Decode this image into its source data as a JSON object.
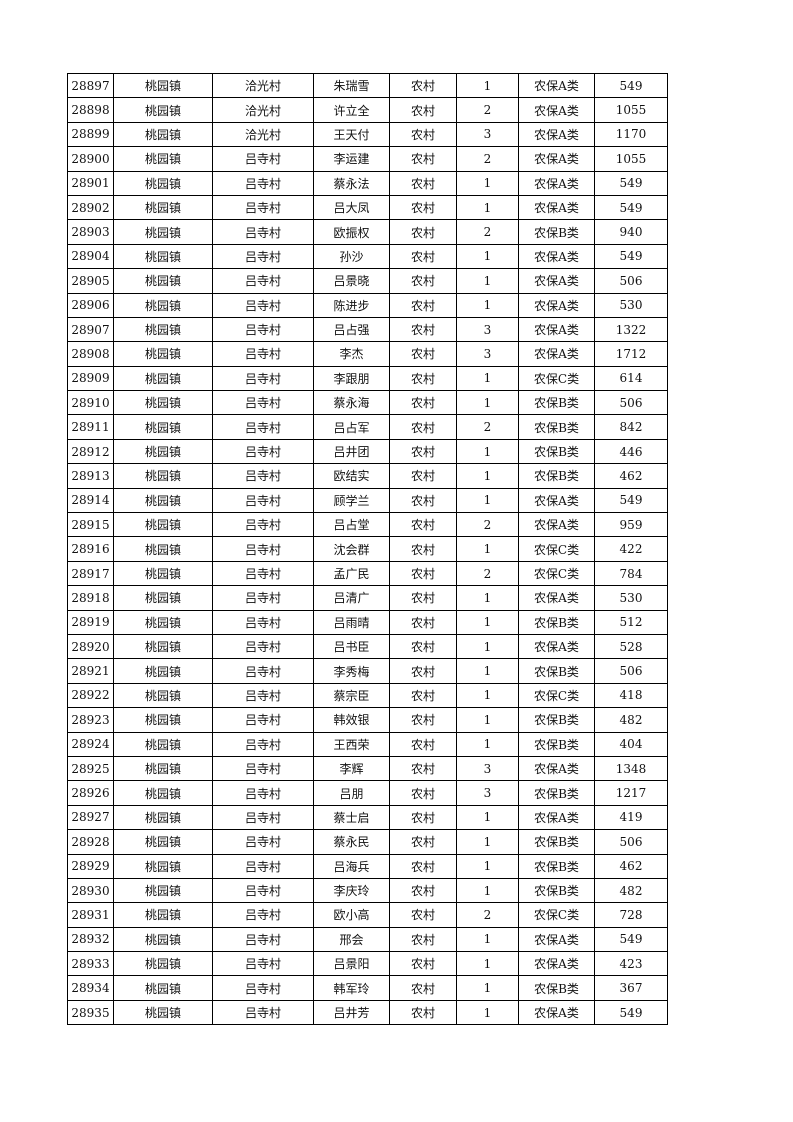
{
  "rows": [
    [
      "28897",
      "桃园镇",
      "洽光村",
      "朱瑞雪",
      "农村",
      "1",
      "农保A类",
      "549"
    ],
    [
      "28898",
      "桃园镇",
      "洽光村",
      "许立全",
      "农村",
      "2",
      "农保A类",
      "1055"
    ],
    [
      "28899",
      "桃园镇",
      "洽光村",
      "王天付",
      "农村",
      "3",
      "农保A类",
      "1170"
    ],
    [
      "28900",
      "桃园镇",
      "吕寺村",
      "李运建",
      "农村",
      "2",
      "农保A类",
      "1055"
    ],
    [
      "28901",
      "桃园镇",
      "吕寺村",
      "蔡永法",
      "农村",
      "1",
      "农保A类",
      "549"
    ],
    [
      "28902",
      "桃园镇",
      "吕寺村",
      "吕大凤",
      "农村",
      "1",
      "农保A类",
      "549"
    ],
    [
      "28903",
      "桃园镇",
      "吕寺村",
      "欧振权",
      "农村",
      "2",
      "农保B类",
      "940"
    ],
    [
      "28904",
      "桃园镇",
      "吕寺村",
      "孙沙",
      "农村",
      "1",
      "农保A类",
      "549"
    ],
    [
      "28905",
      "桃园镇",
      "吕寺村",
      "吕景晓",
      "农村",
      "1",
      "农保A类",
      "506"
    ],
    [
      "28906",
      "桃园镇",
      "吕寺村",
      "陈进步",
      "农村",
      "1",
      "农保A类",
      "530"
    ],
    [
      "28907",
      "桃园镇",
      "吕寺村",
      "吕占强",
      "农村",
      "3",
      "农保A类",
      "1322"
    ],
    [
      "28908",
      "桃园镇",
      "吕寺村",
      "李杰",
      "农村",
      "3",
      "农保A类",
      "1712"
    ],
    [
      "28909",
      "桃园镇",
      "吕寺村",
      "李跟朋",
      "农村",
      "1",
      "农保C类",
      "614"
    ],
    [
      "28910",
      "桃园镇",
      "吕寺村",
      "蔡永海",
      "农村",
      "1",
      "农保B类",
      "506"
    ],
    [
      "28911",
      "桃园镇",
      "吕寺村",
      "吕占军",
      "农村",
      "2",
      "农保B类",
      "842"
    ],
    [
      "28912",
      "桃园镇",
      "吕寺村",
      "吕井团",
      "农村",
      "1",
      "农保B类",
      "446"
    ],
    [
      "28913",
      "桃园镇",
      "吕寺村",
      "欧结实",
      "农村",
      "1",
      "农保B类",
      "462"
    ],
    [
      "28914",
      "桃园镇",
      "吕寺村",
      "顾学兰",
      "农村",
      "1",
      "农保A类",
      "549"
    ],
    [
      "28915",
      "桃园镇",
      "吕寺村",
      "吕占堂",
      "农村",
      "2",
      "农保A类",
      "959"
    ],
    [
      "28916",
      "桃园镇",
      "吕寺村",
      "沈会群",
      "农村",
      "1",
      "农保C类",
      "422"
    ],
    [
      "28917",
      "桃园镇",
      "吕寺村",
      "孟广民",
      "农村",
      "2",
      "农保C类",
      "784"
    ],
    [
      "28918",
      "桃园镇",
      "吕寺村",
      "吕清广",
      "农村",
      "1",
      "农保A类",
      "530"
    ],
    [
      "28919",
      "桃园镇",
      "吕寺村",
      "吕雨晴",
      "农村",
      "1",
      "农保B类",
      "512"
    ],
    [
      "28920",
      "桃园镇",
      "吕寺村",
      "吕书臣",
      "农村",
      "1",
      "农保A类",
      "528"
    ],
    [
      "28921",
      "桃园镇",
      "吕寺村",
      "李秀梅",
      "农村",
      "1",
      "农保B类",
      "506"
    ],
    [
      "28922",
      "桃园镇",
      "吕寺村",
      "蔡宗臣",
      "农村",
      "1",
      "农保C类",
      "418"
    ],
    [
      "28923",
      "桃园镇",
      "吕寺村",
      "韩效银",
      "农村",
      "1",
      "农保B类",
      "482"
    ],
    [
      "28924",
      "桃园镇",
      "吕寺村",
      "王西荣",
      "农村",
      "1",
      "农保B类",
      "404"
    ],
    [
      "28925",
      "桃园镇",
      "吕寺村",
      "李辉",
      "农村",
      "3",
      "农保A类",
      "1348"
    ],
    [
      "28926",
      "桃园镇",
      "吕寺村",
      "吕朋",
      "农村",
      "3",
      "农保B类",
      "1217"
    ],
    [
      "28927",
      "桃园镇",
      "吕寺村",
      "蔡士启",
      "农村",
      "1",
      "农保A类",
      "419"
    ],
    [
      "28928",
      "桃园镇",
      "吕寺村",
      "蔡永民",
      "农村",
      "1",
      "农保B类",
      "506"
    ],
    [
      "28929",
      "桃园镇",
      "吕寺村",
      "吕海兵",
      "农村",
      "1",
      "农保B类",
      "462"
    ],
    [
      "28930",
      "桃园镇",
      "吕寺村",
      "李庆玲",
      "农村",
      "1",
      "农保B类",
      "482"
    ],
    [
      "28931",
      "桃园镇",
      "吕寺村",
      "欧小高",
      "农村",
      "2",
      "农保C类",
      "728"
    ],
    [
      "28932",
      "桃园镇",
      "吕寺村",
      "邢会",
      "农村",
      "1",
      "农保A类",
      "549"
    ],
    [
      "28933",
      "桃园镇",
      "吕寺村",
      "吕景阳",
      "农村",
      "1",
      "农保A类",
      "423"
    ],
    [
      "28934",
      "桃园镇",
      "吕寺村",
      "韩军玲",
      "农村",
      "1",
      "农保B类",
      "367"
    ],
    [
      "28935",
      "桃园镇",
      "吕寺村",
      "吕井芳",
      "农村",
      "1",
      "农保A类",
      "549"
    ]
  ]
}
